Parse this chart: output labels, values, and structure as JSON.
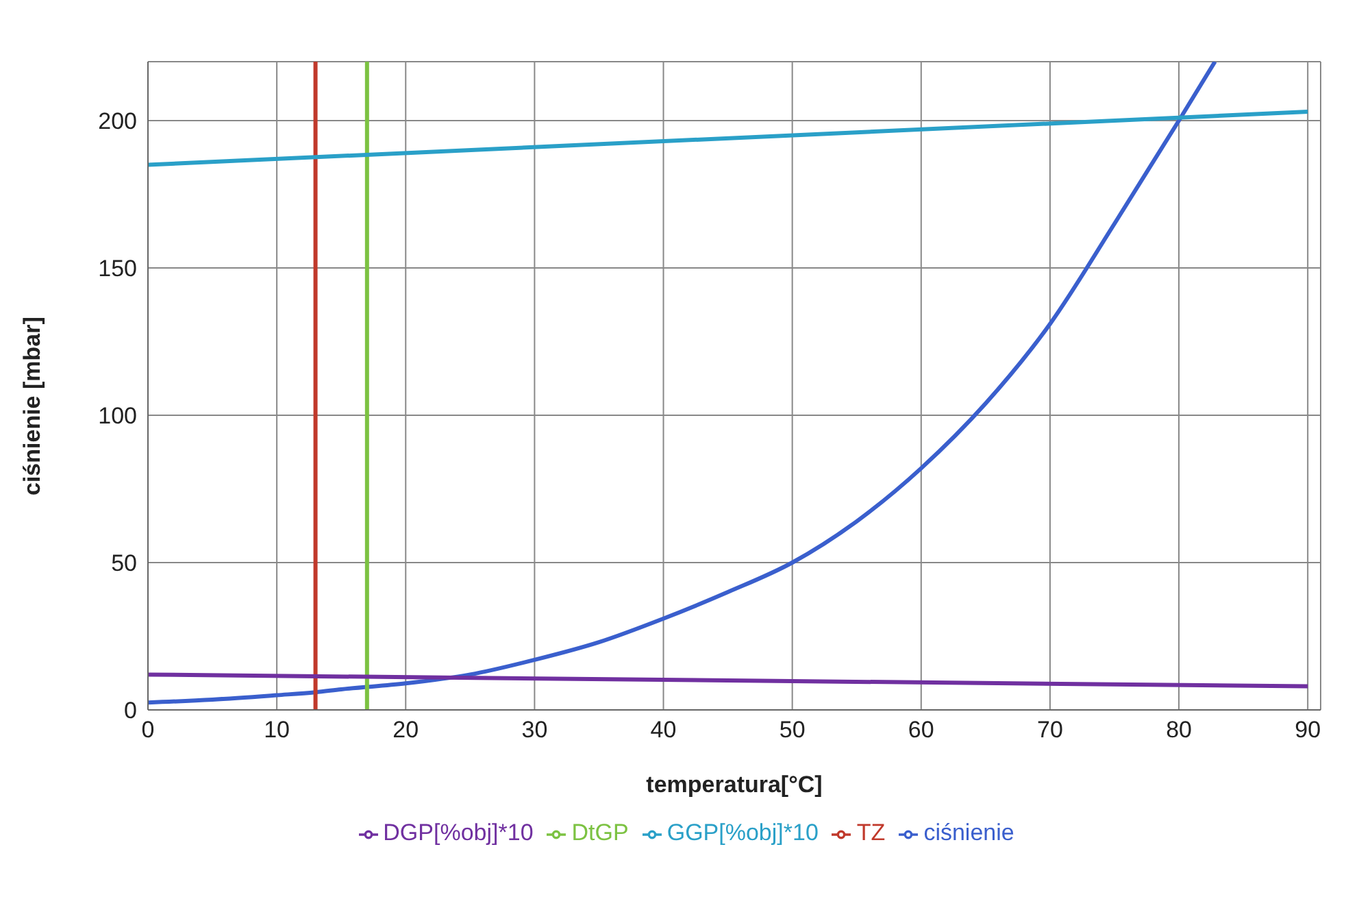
{
  "chart_data": {
    "type": "line",
    "xlabel": "temperatura[°C]",
    "ylabel": "ciśnienie [mbar]",
    "xlim": [
      0,
      91
    ],
    "xticks": [
      0,
      10,
      20,
      30,
      40,
      50,
      60,
      70,
      80,
      90
    ],
    "ylim": [
      0,
      220
    ],
    "yticks": [
      0,
      50,
      100,
      150,
      200
    ],
    "grid": true,
    "legend": "bottom",
    "marker": "none",
    "series": [
      {
        "name": "ciśnienie",
        "color": "#3a5fcd",
        "x": [
          0,
          5,
          10,
          13,
          15,
          20,
          25,
          30,
          35,
          40,
          45,
          50,
          55,
          60,
          65,
          70,
          75,
          80,
          82.8
        ],
        "values": [
          2.5,
          3.5,
          5,
          6,
          7,
          9,
          12,
          17,
          23,
          31,
          40,
          50,
          64,
          82,
          104,
          131,
          165,
          200,
          220
        ]
      },
      {
        "name": "TZ",
        "color": "#c0392b",
        "x": [
          13,
          13
        ],
        "values": [
          0,
          220
        ]
      },
      {
        "name": "DtGP",
        "color": "#7cc242",
        "x": [
          17,
          17
        ],
        "values": [
          0,
          220
        ]
      },
      {
        "name": "DGP[%obj]*10",
        "color": "#7030a0",
        "x": [
          0,
          90
        ],
        "values": [
          12,
          8
        ]
      },
      {
        "name": "GGP[%obj]*10",
        "color": "#2aa0c8",
        "x": [
          0,
          90
        ],
        "values": [
          185,
          203
        ]
      }
    ]
  }
}
